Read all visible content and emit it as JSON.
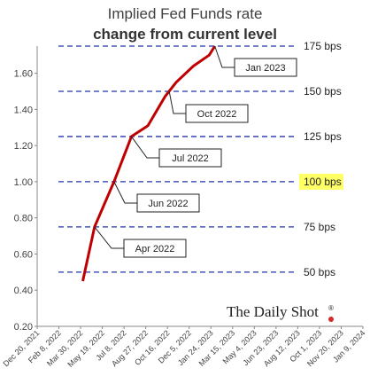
{
  "title": "Implied Fed Funds rate",
  "subtitle": "change from current level",
  "chart_data": {
    "type": "line",
    "title": "Implied Fed Funds rate",
    "subtitle": "change from current level",
    "ylim": [
      0.2,
      1.75
    ],
    "y_ticks": [
      "0.20",
      "0.40",
      "0.60",
      "0.80",
      "1.00",
      "1.20",
      "1.40",
      "1.60"
    ],
    "x_ticks": [
      "Dec 20, 2021",
      "Feb 8, 2022",
      "Mar 30, 2022",
      "May 19, 2022",
      "Jul 8, 2022",
      "Aug 27, 2022",
      "Oct 16, 2022",
      "Dec 5, 2022",
      "Jan 24, 2023",
      "Mar 15, 2023",
      "May 4, 2023",
      "Jun 23, 2023",
      "Aug 12, 2023",
      "Oct 1, 2023",
      "Nov 20, 2023",
      "Jan 9, 2024"
    ],
    "x_start": "2021-12-20",
    "x_end": "2024-01-09",
    "series": [
      {
        "color": "#c00000",
        "points": [
          {
            "x": "2022-04-04",
            "y": 0.45
          },
          {
            "x": "2022-05-01",
            "y": 0.75
          },
          {
            "x": "2022-06-15",
            "y": 1.0
          },
          {
            "x": "2022-07-25",
            "y": 1.25
          },
          {
            "x": "2022-09-01",
            "y": 1.31
          },
          {
            "x": "2022-10-10",
            "y": 1.47
          },
          {
            "x": "2022-11-05",
            "y": 1.55
          },
          {
            "x": "2022-12-15",
            "y": 1.64
          },
          {
            "x": "2023-01-20",
            "y": 1.7
          },
          {
            "x": "2023-02-02",
            "y": 1.75
          }
        ]
      }
    ],
    "reference_lines": [
      {
        "y": 0.5,
        "label": "50 bps",
        "highlight": false
      },
      {
        "y": 0.75,
        "label": "75 bps",
        "highlight": false
      },
      {
        "y": 1.0,
        "label": "100 bps",
        "highlight": true
      },
      {
        "y": 1.25,
        "label": "125 bps",
        "highlight": false
      },
      {
        "y": 1.5,
        "label": "150 bps",
        "highlight": false
      },
      {
        "y": 1.75,
        "label": "175 bps",
        "highlight": false
      }
    ],
    "annotations": [
      {
        "text": "Apr 2022",
        "x": "2022-05-01",
        "y": 0.75
      },
      {
        "text": "Jun 2022",
        "x": "2022-06-15",
        "y": 1.0
      },
      {
        "text": "Jul 2022",
        "x": "2022-07-25",
        "y": 1.25
      },
      {
        "text": "Oct 2022",
        "x": "2022-10-20",
        "y": 1.5
      },
      {
        "text": "Jan 2023",
        "x": "2023-02-02",
        "y": 1.75
      }
    ],
    "grid": false,
    "colors": {
      "line": "#c00000",
      "reference": "#2233aa",
      "highlight": "#ffff66"
    }
  },
  "brand": {
    "name": "The Daily Shot",
    "mark": "®"
  }
}
